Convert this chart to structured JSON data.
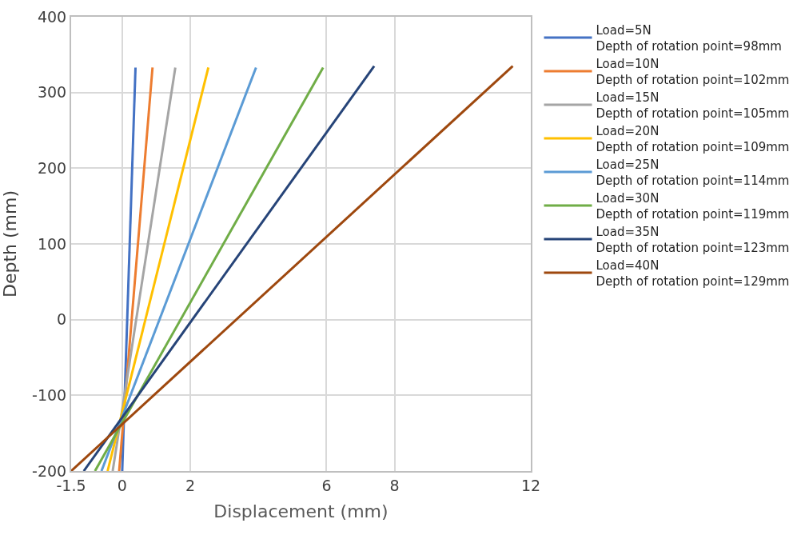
{
  "chart_data": {
    "type": "line",
    "xlabel": "Displacement (mm)",
    "ylabel": "Depth (mm)",
    "xlim": [
      -1.5,
      12
    ],
    "xticks": [
      -1.5,
      0,
      2,
      6,
      8,
      12
    ],
    "ylim": [
      -200,
      400
    ],
    "yticks": [
      -200,
      -100,
      0,
      100,
      200,
      300,
      400
    ],
    "grid": true,
    "legend": "right",
    "marker": "none",
    "line_style": "solid",
    "series": [
      {
        "name": "Load=5N\nDepth of rotation point=98mm",
        "color": "#4472c4",
        "x": [
          0,
          0.39
        ],
        "values": [
          -200,
          333
        ]
      },
      {
        "name": "Load=10N\nDepth of rotation point=102mm",
        "color": "#ed7d31",
        "x": [
          -0.09,
          0.89
        ],
        "values": [
          -200,
          333
        ]
      },
      {
        "name": "Load=15N\nDepth of rotation point=105mm",
        "color": "#a5a5a5",
        "x": [
          -0.28,
          1.56
        ],
        "values": [
          -200,
          333
        ]
      },
      {
        "name": "Load=20N\nDepth of rotation point=109mm",
        "color": "#ffc000",
        "x": [
          -0.43,
          2.53
        ],
        "values": [
          -200,
          333
        ]
      },
      {
        "name": "Load=25N\nDepth of rotation point=114mm",
        "color": "#5b9bd5",
        "x": [
          -0.61,
          3.93
        ],
        "values": [
          -200,
          333
        ]
      },
      {
        "name": "Load=30N\nDepth of rotation point=119mm",
        "color": "#70ad47",
        "x": [
          -0.8,
          5.9
        ],
        "values": [
          -200,
          333
        ]
      },
      {
        "name": "Load=35N\nDepth of rotation point=123mm",
        "color": "#264478",
        "x": [
          -1.13,
          7.4
        ],
        "values": [
          -200,
          335
        ]
      },
      {
        "name": "Load=40N\nDepth of rotation point=129mm",
        "color": "#9e480e",
        "x": [
          -1.5,
          11.47
        ],
        "values": [
          -200,
          335
        ]
      }
    ]
  }
}
